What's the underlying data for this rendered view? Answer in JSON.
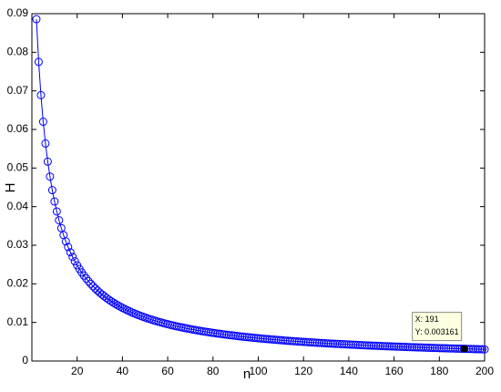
{
  "chart_data": {
    "type": "line",
    "xlabel": "n",
    "ylabel": "H",
    "color": "#0000ff",
    "x": [
      2,
      3,
      4,
      5,
      6,
      7,
      8,
      9,
      10,
      11,
      12,
      13,
      14,
      15,
      16,
      17,
      18,
      19,
      20,
      21,
      22,
      23,
      24,
      25,
      26,
      27,
      28,
      29,
      30,
      31,
      32,
      33,
      34,
      35,
      36,
      37,
      38,
      39,
      40,
      41,
      42,
      43,
      44,
      45,
      46,
      47,
      48,
      49,
      50,
      51,
      52,
      53,
      54,
      55,
      56,
      57,
      58,
      59,
      60,
      61,
      62,
      63,
      64,
      65,
      66,
      67,
      68,
      69,
      70,
      71,
      72,
      73,
      74,
      75,
      76,
      77,
      78,
      79,
      80,
      81,
      82,
      83,
      84,
      85,
      86,
      87,
      88,
      89,
      90,
      91,
      92,
      93,
      94,
      95,
      96,
      97,
      98,
      99,
      100,
      101,
      102,
      103,
      104,
      105,
      106,
      107,
      108,
      109,
      110,
      111,
      112,
      113,
      114,
      115,
      116,
      117,
      118,
      119,
      120,
      121,
      122,
      123,
      124,
      125,
      126,
      127,
      128,
      129,
      130,
      131,
      132,
      133,
      134,
      135,
      136,
      137,
      138,
      139,
      140,
      141,
      142,
      143,
      144,
      145,
      146,
      147,
      148,
      149,
      150,
      151,
      152,
      153,
      154,
      155,
      156,
      157,
      158,
      159,
      160,
      161,
      162,
      163,
      164,
      165,
      166,
      167,
      168,
      169,
      170,
      171,
      172,
      173,
      174,
      175,
      176,
      177,
      178,
      179,
      180,
      181,
      182,
      183,
      184,
      185,
      186,
      187,
      188,
      189,
      190,
      191,
      192,
      193,
      194,
      195,
      196,
      197,
      198,
      199,
      200
    ],
    "values": [
      0.08857,
      0.0775,
      0.06889,
      0.062,
      0.05636,
      0.05167,
      0.04778,
      0.04429,
      0.04133,
      0.03875,
      0.03647,
      0.03444,
      0.03263,
      0.031,
      0.02952,
      0.02818,
      0.02696,
      0.02583,
      0.0248,
      0.02385,
      0.02296,
      0.02214,
      0.02138,
      0.02067,
      0.02,
      0.01938,
      0.01879,
      0.01824,
      0.01771,
      0.01722,
      0.01676,
      0.01632,
      0.0159,
      0.0155,
      0.01512,
      0.01476,
      0.01442,
      0.01409,
      0.01378,
      0.01348,
      0.01319,
      0.01292,
      0.01265,
      0.0124,
      0.01216,
      0.01192,
      0.0117,
      0.01148,
      0.01127,
      0.01107,
      0.01088,
      0.01069,
      0.01051,
      0.01033,
      0.01016,
      0.01,
      0.00984,
      0.00969,
      0.00954,
      0.00939,
      0.00925,
      0.00912,
      0.00899,
      0.00886,
      0.00873,
      0.00861,
      0.00849,
      0.00838,
      0.00827,
      0.00816,
      0.00805,
      0.00795,
      0.00785,
      0.00775,
      0.00765,
      0.00756,
      0.00747,
      0.00738,
      0.00729,
      0.00721,
      0.00713,
      0.00705,
      0.00697,
      0.00689,
      0.00681,
      0.00674,
      0.00667,
      0.0066,
      0.00653,
      0.00646,
      0.00639,
      0.00633,
      0.00626,
      0.0062,
      0.00614,
      0.00608,
      0.00602,
      0.00596,
      0.0059,
      0.00585,
      0.00579,
      0.00574,
      0.00569,
      0.00564,
      0.00559,
      0.00554,
      0.00549,
      0.00544,
      0.00539,
      0.00534,
      0.0053,
      0.00525,
      0.00521,
      0.00517,
      0.00512,
      0.00508,
      0.00504,
      0.005,
      0.00496,
      0.00492,
      0.00488,
      0.00484,
      0.00481,
      0.00477,
      0.00473,
      0.0047,
      0.00466,
      0.00463,
      0.00459,
      0.00456,
      0.00453,
      0.00449,
      0.00446,
      0.00443,
      0.0044,
      0.00437,
      0.00434,
      0.00431,
      0.00428,
      0.00425,
      0.00422,
      0.00419,
      0.00416,
      0.00413,
      0.00411,
      0.00408,
      0.00405,
      0.00403,
      0.004,
      0.00397,
      0.00395,
      0.00392,
      0.0039,
      0.00388,
      0.00385,
      0.00383,
      0.0038,
      0.00378,
      0.00376,
      0.00373,
      0.00371,
      0.00369,
      0.00367,
      0.00365,
      0.00363,
      0.0036,
      0.00358,
      0.00356,
      0.00354,
      0.00352,
      0.0035,
      0.00348,
      0.00346,
      0.00344,
      0.00343,
      0.00341,
      0.00339,
      0.00337,
      0.00335,
      0.00333,
      0.00332,
      0.0033,
      0.00328,
      0.00326,
      0.00325,
      0.00323,
      0.00321,
      0.0032,
      0.00318,
      0.003161,
      0.00315,
      0.00313,
      0.00312,
      0.0031,
      0.00308,
      0.00307,
      0.00305,
      0.00304,
      0.00302
    ],
    "xlim": [
      0,
      200
    ],
    "xticks": [
      20,
      40,
      60,
      80,
      100,
      120,
      140,
      160,
      180,
      200
    ],
    "ylim": [
      0,
      0.09
    ],
    "yticks": [
      0,
      0.01,
      0.02,
      0.03,
      0.04,
      0.05,
      0.06,
      0.07,
      0.08,
      0.09
    ],
    "datatip": {
      "x": 191,
      "y": 0.003161,
      "label": [
        "X: 191",
        "Y: 0.003161"
      ]
    }
  }
}
